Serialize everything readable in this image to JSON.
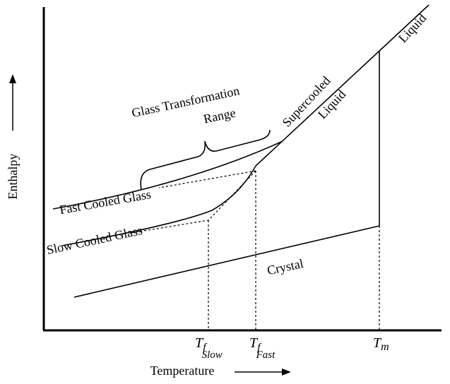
{
  "axes": {
    "x_label": "Temperature",
    "y_label": "Enthalpy"
  },
  "labels": {
    "range_line1": "Glass Transformation",
    "range_line2": "Range",
    "supercooled": "Supercooled",
    "supercooled_liquid": "Liquid",
    "liquid": "Liquid",
    "fast": "Fast Cooled Glass",
    "slow": "Slow Cooled Glass",
    "crystal": "Crystal"
  },
  "ticks": [
    {
      "symbol": "T",
      "sub": "f",
      "subsub": "Slow"
    },
    {
      "symbol": "T",
      "sub": "f",
      "subsub": "Fast"
    },
    {
      "symbol": "T",
      "sub": "m"
    }
  ]
}
